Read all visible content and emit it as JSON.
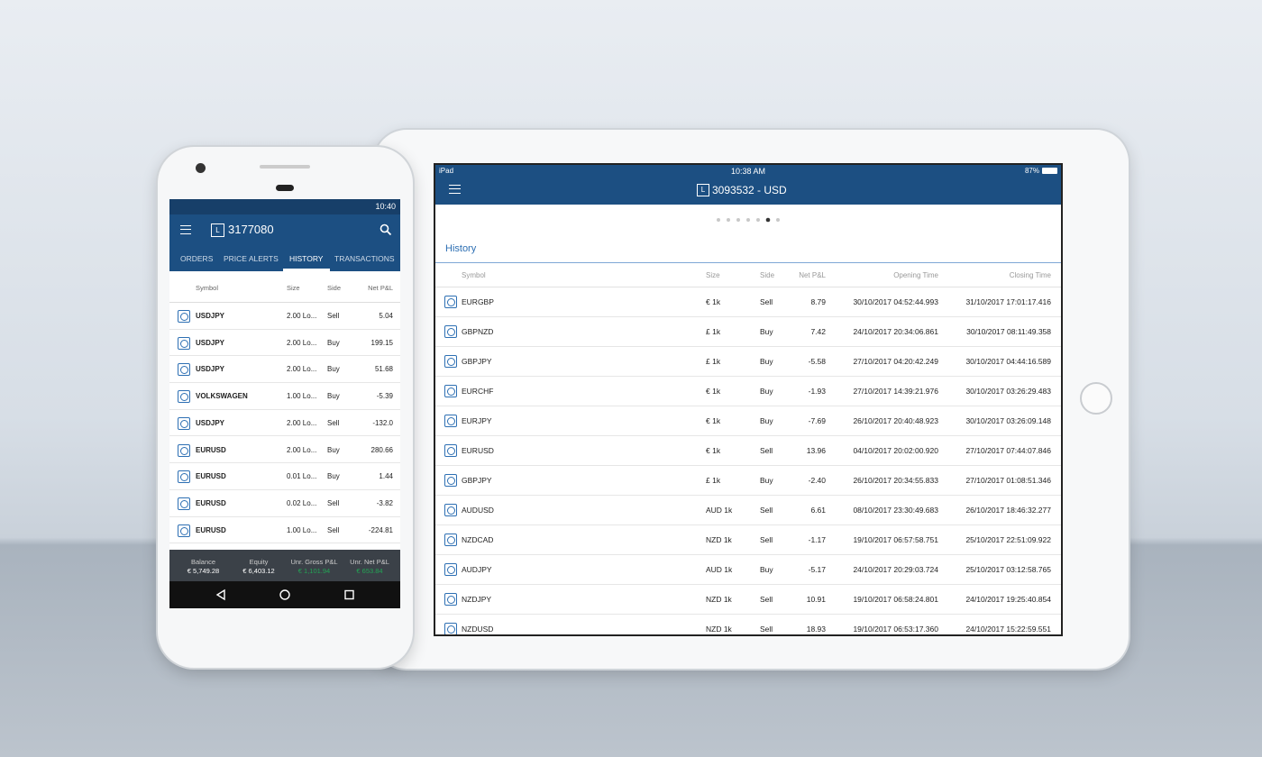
{
  "phone": {
    "status_time": "10:40",
    "account_badge": "L",
    "account": "3177080",
    "tabs": [
      "ORDERS",
      "PRICE ALERTS",
      "HISTORY",
      "TRANSACTIONS"
    ],
    "active_tab": 2,
    "columns": [
      "Symbol",
      "Size",
      "Side",
      "Net P&L"
    ],
    "rows": [
      [
        "USDJPY",
        "2.00 Lo...",
        "Sell",
        "5.04"
      ],
      [
        "USDJPY",
        "2.00 Lo...",
        "Buy",
        "199.15"
      ],
      [
        "USDJPY",
        "2.00 Lo...",
        "Buy",
        "51.68"
      ],
      [
        "VOLKSWAGEN",
        "1.00 Lo...",
        "Buy",
        "-5.39"
      ],
      [
        "USDJPY",
        "2.00 Lo...",
        "Sell",
        "-132.0"
      ],
      [
        "EURUSD",
        "2.00 Lo...",
        "Buy",
        "280.66"
      ],
      [
        "EURUSD",
        "0.01 Lo...",
        "Buy",
        "1.44"
      ],
      [
        "EURUSD",
        "0.02 Lo...",
        "Sell",
        "-3.82"
      ],
      [
        "EURUSD",
        "1.00 Lo...",
        "Sell",
        "-224.81"
      ]
    ],
    "footer": [
      {
        "label": "Balance",
        "value": "€ 5,749.28"
      },
      {
        "label": "Equity",
        "value": "€ 6,403.12"
      },
      {
        "label": "Unr. Gross P&L",
        "value": "€ 1,101.94"
      },
      {
        "label": "Unr. Net P&L",
        "value": "€ 653.84"
      }
    ]
  },
  "tablet": {
    "status_device": "iPad",
    "status_time": "10:38 AM",
    "status_battery": "87%",
    "account_badge": "L",
    "account": "3093532 - USD",
    "section_title": "History",
    "columns": [
      "Symbol",
      "Size",
      "Side",
      "Net P&L",
      "Opening Time",
      "Closing Time"
    ],
    "rows": [
      [
        "EURGBP",
        "€ 1k",
        "Sell",
        "8.79",
        "30/10/2017 04:52:44.993",
        "31/10/2017 17:01:17.416"
      ],
      [
        "GBPNZD",
        "£ 1k",
        "Buy",
        "7.42",
        "24/10/2017 20:34:06.861",
        "30/10/2017 08:11:49.358"
      ],
      [
        "GBPJPY",
        "£ 1k",
        "Buy",
        "-5.58",
        "27/10/2017 04:20:42.249",
        "30/10/2017 04:44:16.589"
      ],
      [
        "EURCHF",
        "€ 1k",
        "Buy",
        "-1.93",
        "27/10/2017 14:39:21.976",
        "30/10/2017 03:26:29.483"
      ],
      [
        "EURJPY",
        "€ 1k",
        "Buy",
        "-7.69",
        "26/10/2017 20:40:48.923",
        "30/10/2017 03:26:09.148"
      ],
      [
        "EURUSD",
        "€ 1k",
        "Sell",
        "13.96",
        "04/10/2017 20:02:00.920",
        "27/10/2017 07:44:07.846"
      ],
      [
        "GBPJPY",
        "£ 1k",
        "Buy",
        "-2.40",
        "26/10/2017 20:34:55.833",
        "27/10/2017 01:08:51.346"
      ],
      [
        "AUDUSD",
        "AUD 1k",
        "Sell",
        "6.61",
        "08/10/2017 23:30:49.683",
        "26/10/2017 18:46:32.277"
      ],
      [
        "NZDCAD",
        "NZD 1k",
        "Sell",
        "-1.17",
        "19/10/2017 06:57:58.751",
        "25/10/2017 22:51:09.922"
      ],
      [
        "AUDJPY",
        "AUD 1k",
        "Buy",
        "-5.17",
        "24/10/2017 20:29:03.724",
        "25/10/2017 03:12:58.765"
      ],
      [
        "NZDJPY",
        "NZD 1k",
        "Sell",
        "10.91",
        "19/10/2017 06:58:24.801",
        "24/10/2017 19:25:40.854"
      ],
      [
        "NZDUSD",
        "NZD 1k",
        "Sell",
        "18.93",
        "19/10/2017 06:53:17.360",
        "24/10/2017 15:22:59.551"
      ]
    ]
  }
}
